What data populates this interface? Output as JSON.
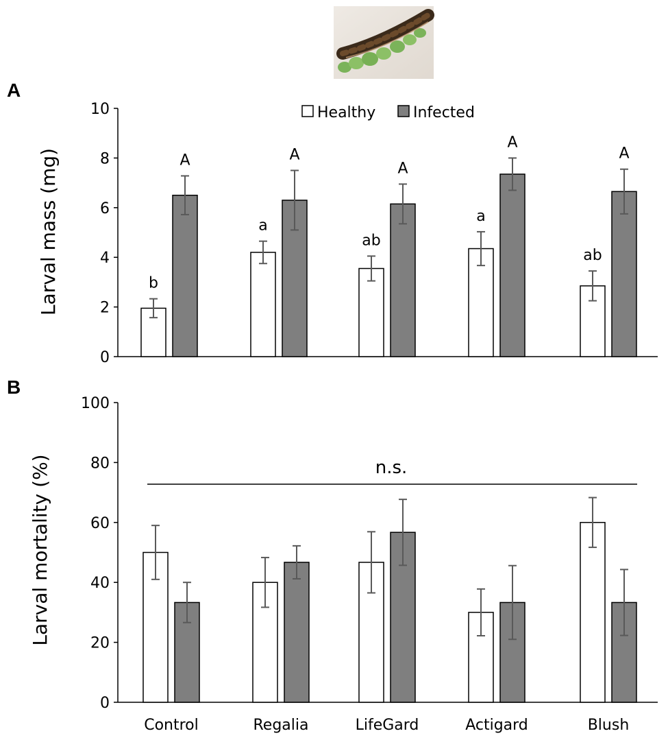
{
  "colors": {
    "healthy": "#ffffff",
    "infected": "#7f7f7f",
    "stroke": "#000000",
    "errorbar": "#595959"
  },
  "photo_icon": "caterpillar-on-leaf-photo",
  "chart_data": [
    {
      "panel": "A",
      "type": "bar",
      "title": "",
      "xlabel": "",
      "ylabel": "Larval mass (mg)",
      "ylim": [
        0,
        10
      ],
      "yticks": [
        0,
        2,
        4,
        6,
        8,
        10
      ],
      "grid": false,
      "legend": "top-center",
      "categories": [
        "Control",
        "Regalia",
        "LifeGard",
        "Actigard",
        "Blush"
      ],
      "series": [
        {
          "name": "Healthy",
          "values": [
            1.95,
            4.2,
            3.55,
            4.35,
            2.85
          ],
          "errors": [
            0.38,
            0.45,
            0.5,
            0.68,
            0.6
          ],
          "labels": [
            "b",
            "a",
            "ab",
            "a",
            "ab"
          ]
        },
        {
          "name": "Infected",
          "values": [
            6.5,
            6.3,
            6.15,
            7.35,
            6.65
          ],
          "errors": [
            0.78,
            1.2,
            0.8,
            0.65,
            0.9
          ],
          "labels": [
            "A",
            "A",
            "A",
            "A",
            "A"
          ]
        }
      ]
    },
    {
      "panel": "B",
      "type": "bar",
      "title": "",
      "xlabel": "",
      "ylabel": "Larval mortality (%)",
      "ylim": [
        0,
        100
      ],
      "yticks": [
        0,
        20,
        40,
        60,
        80,
        100
      ],
      "grid": false,
      "annotation": "n.s.",
      "categories": [
        "Control",
        "Regalia",
        "LifeGard",
        "Actigard",
        "Blush"
      ],
      "series": [
        {
          "name": "Healthy",
          "values": [
            50,
            40,
            46.7,
            30,
            60
          ],
          "errors": [
            9,
            8.3,
            10.2,
            7.8,
            8.3
          ]
        },
        {
          "name": "Infected",
          "values": [
            33.3,
            46.7,
            56.7,
            33.3,
            33.3
          ],
          "errors": [
            6.7,
            5.5,
            11,
            12.3,
            11
          ]
        }
      ]
    }
  ]
}
